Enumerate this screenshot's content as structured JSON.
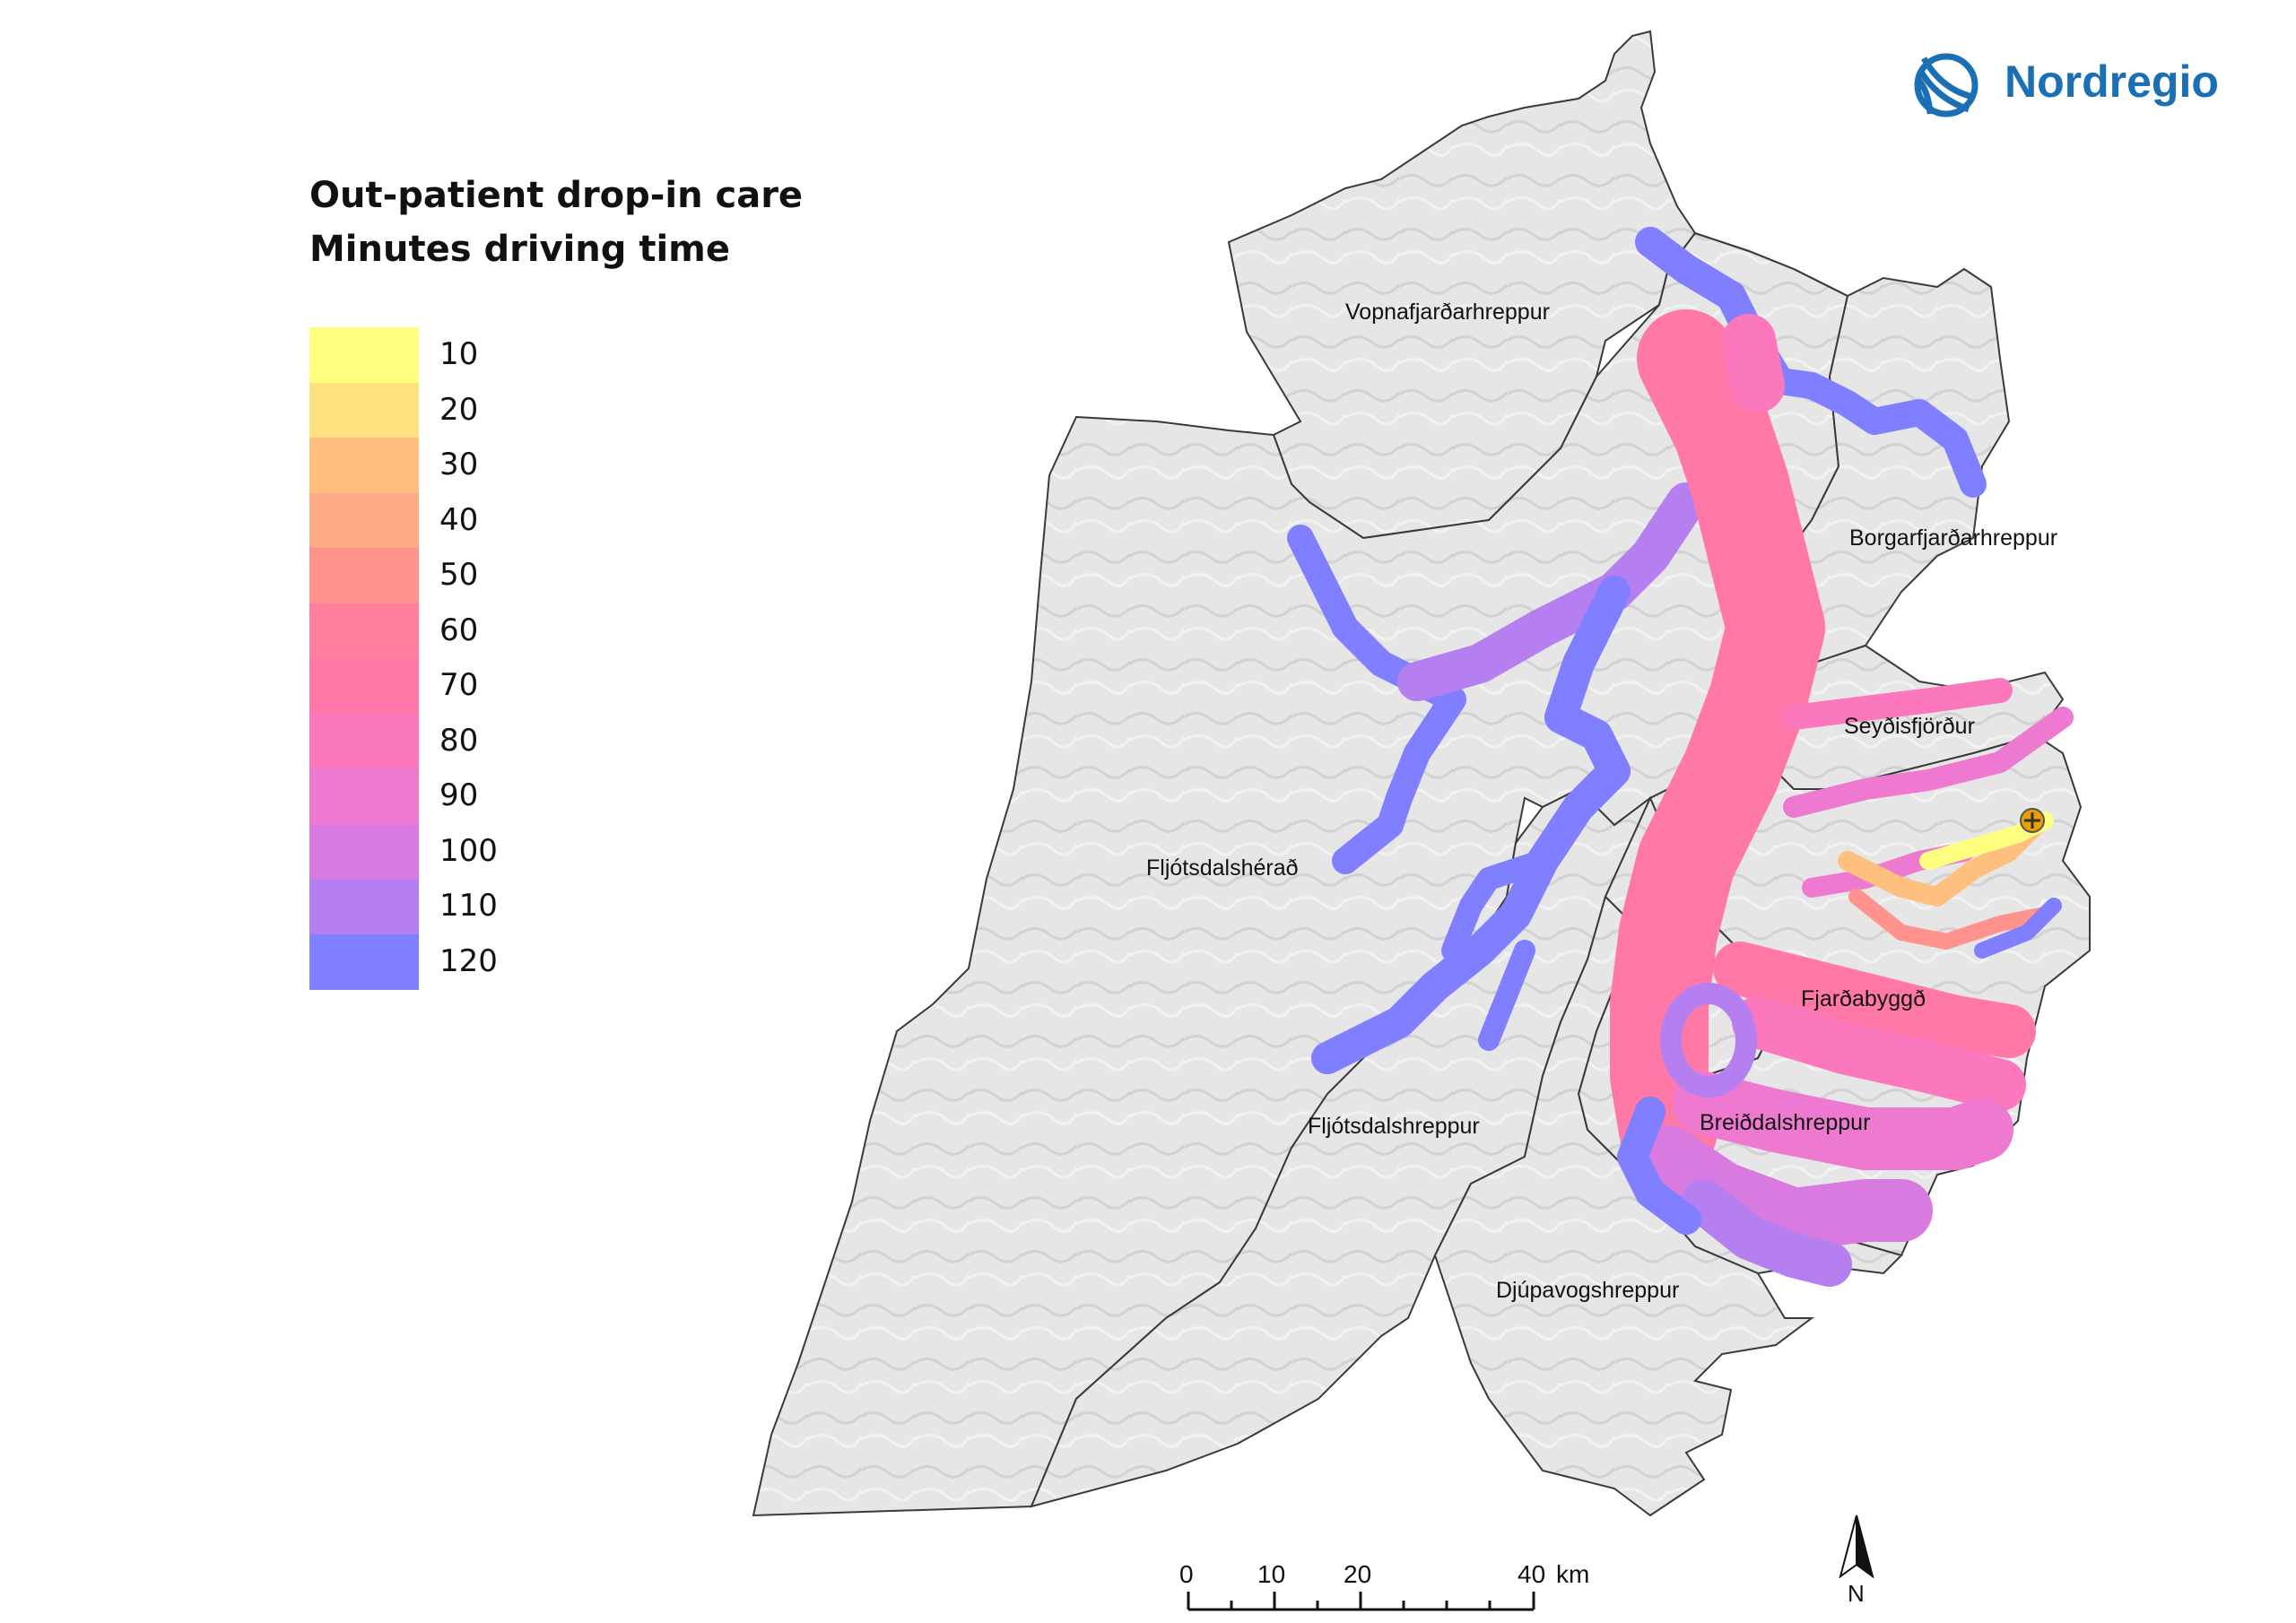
{
  "logo": {
    "text": "Nordregio",
    "icon": "nordregio-wave-icon",
    "color": "#1b6fb5"
  },
  "legend": {
    "title_line1": "Out-patient drop-in care",
    "title_line2": "Minutes driving time",
    "items": [
      {
        "label": "10",
        "color": "#ffff7f"
      },
      {
        "label": "20",
        "color": "#ffe27f"
      },
      {
        "label": "30",
        "color": "#ffc07f"
      },
      {
        "label": "40",
        "color": "#ffaa87"
      },
      {
        "label": "50",
        "color": "#ff928c"
      },
      {
        "label": "60",
        "color": "#ff7f9e"
      },
      {
        "label": "70",
        "color": "#ff78a8"
      },
      {
        "label": "80",
        "color": "#fc78bd"
      },
      {
        "label": "90",
        "color": "#ee79d0"
      },
      {
        "label": "100",
        "color": "#d97ae0"
      },
      {
        "label": "110",
        "color": "#b67ff0"
      },
      {
        "label": "120",
        "color": "#7f7fff"
      }
    ]
  },
  "places": {
    "vopnafjordur": "Vopnafjarðarhreppur",
    "borgarfjordur": "Borgarfjarðarhreppur",
    "seydisfjordur": "Seyðisfjörður",
    "fljotsdalsherad": "Fljótsdalshérað",
    "fjardabyggd": "Fjarðabyggð",
    "breiddalshreppur": "Breiðdalshreppur",
    "fljotsdalshreppur": "Fljótsdalshreppur",
    "djupavogshreppur": "Djúpavogshreppur"
  },
  "scale_bar": {
    "ticks": [
      "0",
      "10",
      "20",
      "40"
    ],
    "unit": "km"
  },
  "north_arrow": {
    "label": "N"
  },
  "facility_marker": "health-facility-icon"
}
